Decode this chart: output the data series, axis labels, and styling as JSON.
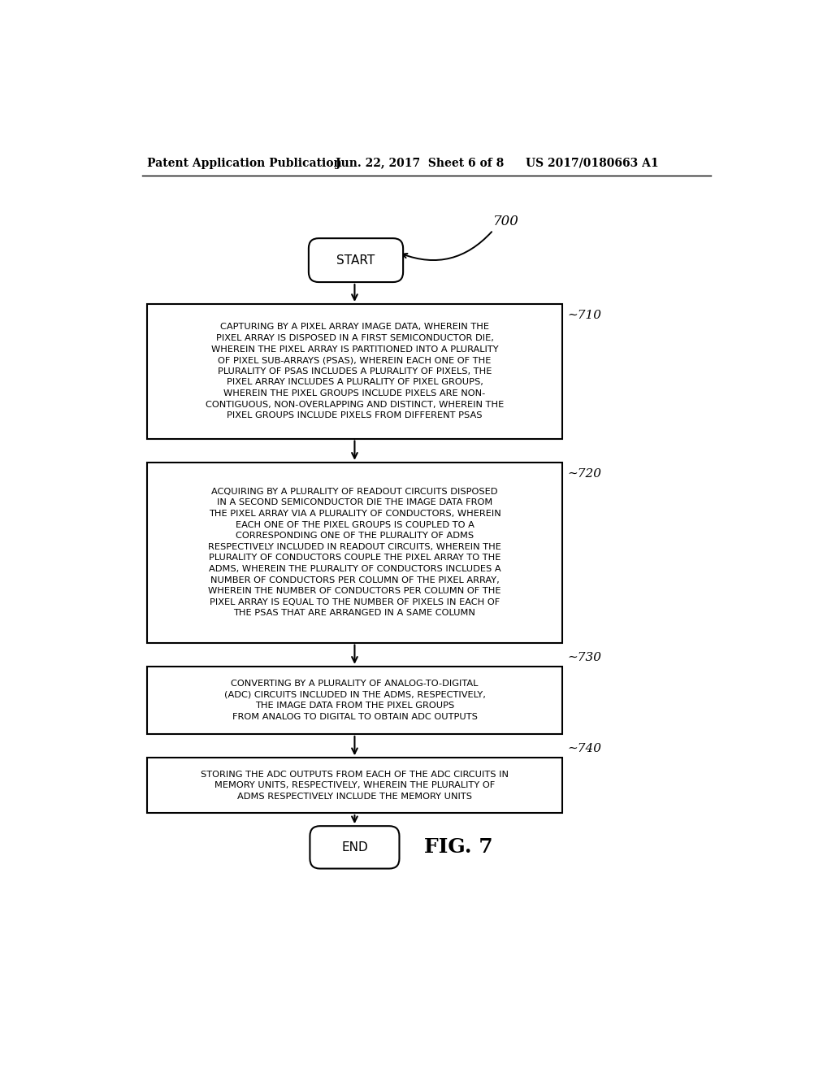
{
  "bg_color": "#ffffff",
  "header_left": "Patent Application Publication",
  "header_mid": "Jun. 22, 2017  Sheet 6 of 8",
  "header_right": "US 2017/0180663 A1",
  "fig_label": "700",
  "fig_name": "FIG. 7",
  "start_label": "START",
  "end_label": "END",
  "boxes": [
    {
      "id": "710",
      "label": "710",
      "text": "CAPTURING BY A PIXEL ARRAY IMAGE DATA, WHEREIN THE\nPIXEL ARRAY IS DISPOSED IN A FIRST SEMICONDUCTOR DIE,\nWHEREIN THE PIXEL ARRAY IS PARTITIONED INTO A PLURALITY\nOF PIXEL SUB-ARRAYS (PSAS), WHEREIN EACH ONE OF THE\nPLURALITY OF PSAS INCLUDES A PLURALITY OF PIXELS, THE\nPIXEL ARRAY INCLUDES A PLURALITY OF PIXEL GROUPS,\nWHEREIN THE PIXEL GROUPS INCLUDE PIXELS ARE NON-\nCONTIGUOUS, NON-OVERLAPPING AND DISTINCT, WHEREIN THE\nPIXEL GROUPS INCLUDE PIXELS FROM DIFFERENT PSAS"
    },
    {
      "id": "720",
      "label": "720",
      "text": "ACQUIRING BY A PLURALITY OF READOUT CIRCUITS DISPOSED\nIN A SECOND SEMICONDUCTOR DIE THE IMAGE DATA FROM\nTHE PIXEL ARRAY VIA A PLURALITY OF CONDUCTORS, WHEREIN\nEACH ONE OF THE PIXEL GROUPS IS COUPLED TO A\nCORRESPONDING ONE OF THE PLURALITY OF ADMS\nRESPECTIVELY INCLUDED IN READOUT CIRCUITS, WHEREIN THE\nPLURALITY OF CONDUCTORS COUPLE THE PIXEL ARRAY TO THE\nADMS, WHEREIN THE PLURALITY OF CONDUCTORS INCLUDES A\nNUMBER OF CONDUCTORS PER COLUMN OF THE PIXEL ARRAY,\nWHEREIN THE NUMBER OF CONDUCTORS PER COLUMN OF THE\nPIXEL ARRAY IS EQUAL TO THE NUMBER OF PIXELS IN EACH OF\nTHE PSAS THAT ARE ARRANGED IN A SAME COLUMN"
    },
    {
      "id": "730",
      "label": "730",
      "text": "CONVERTING BY A PLURALITY OF ANALOG-TO-DIGITAL\n(ADC) CIRCUITS INCLUDED IN THE ADMS, RESPECTIVELY,\nTHE IMAGE DATA FROM THE PIXEL GROUPS\nFROM ANALOG TO DIGITAL TO OBTAIN ADC OUTPUTS"
    },
    {
      "id": "740",
      "label": "740",
      "text": "STORING THE ADC OUTPUTS FROM EACH OF THE ADC CIRCUITS IN\nMEMORY UNITS, RESPECTIVELY, WHEREIN THE PLURALITY OF\nADMS RESPECTIVELY INCLUDE THE MEMORY UNITS"
    }
  ]
}
